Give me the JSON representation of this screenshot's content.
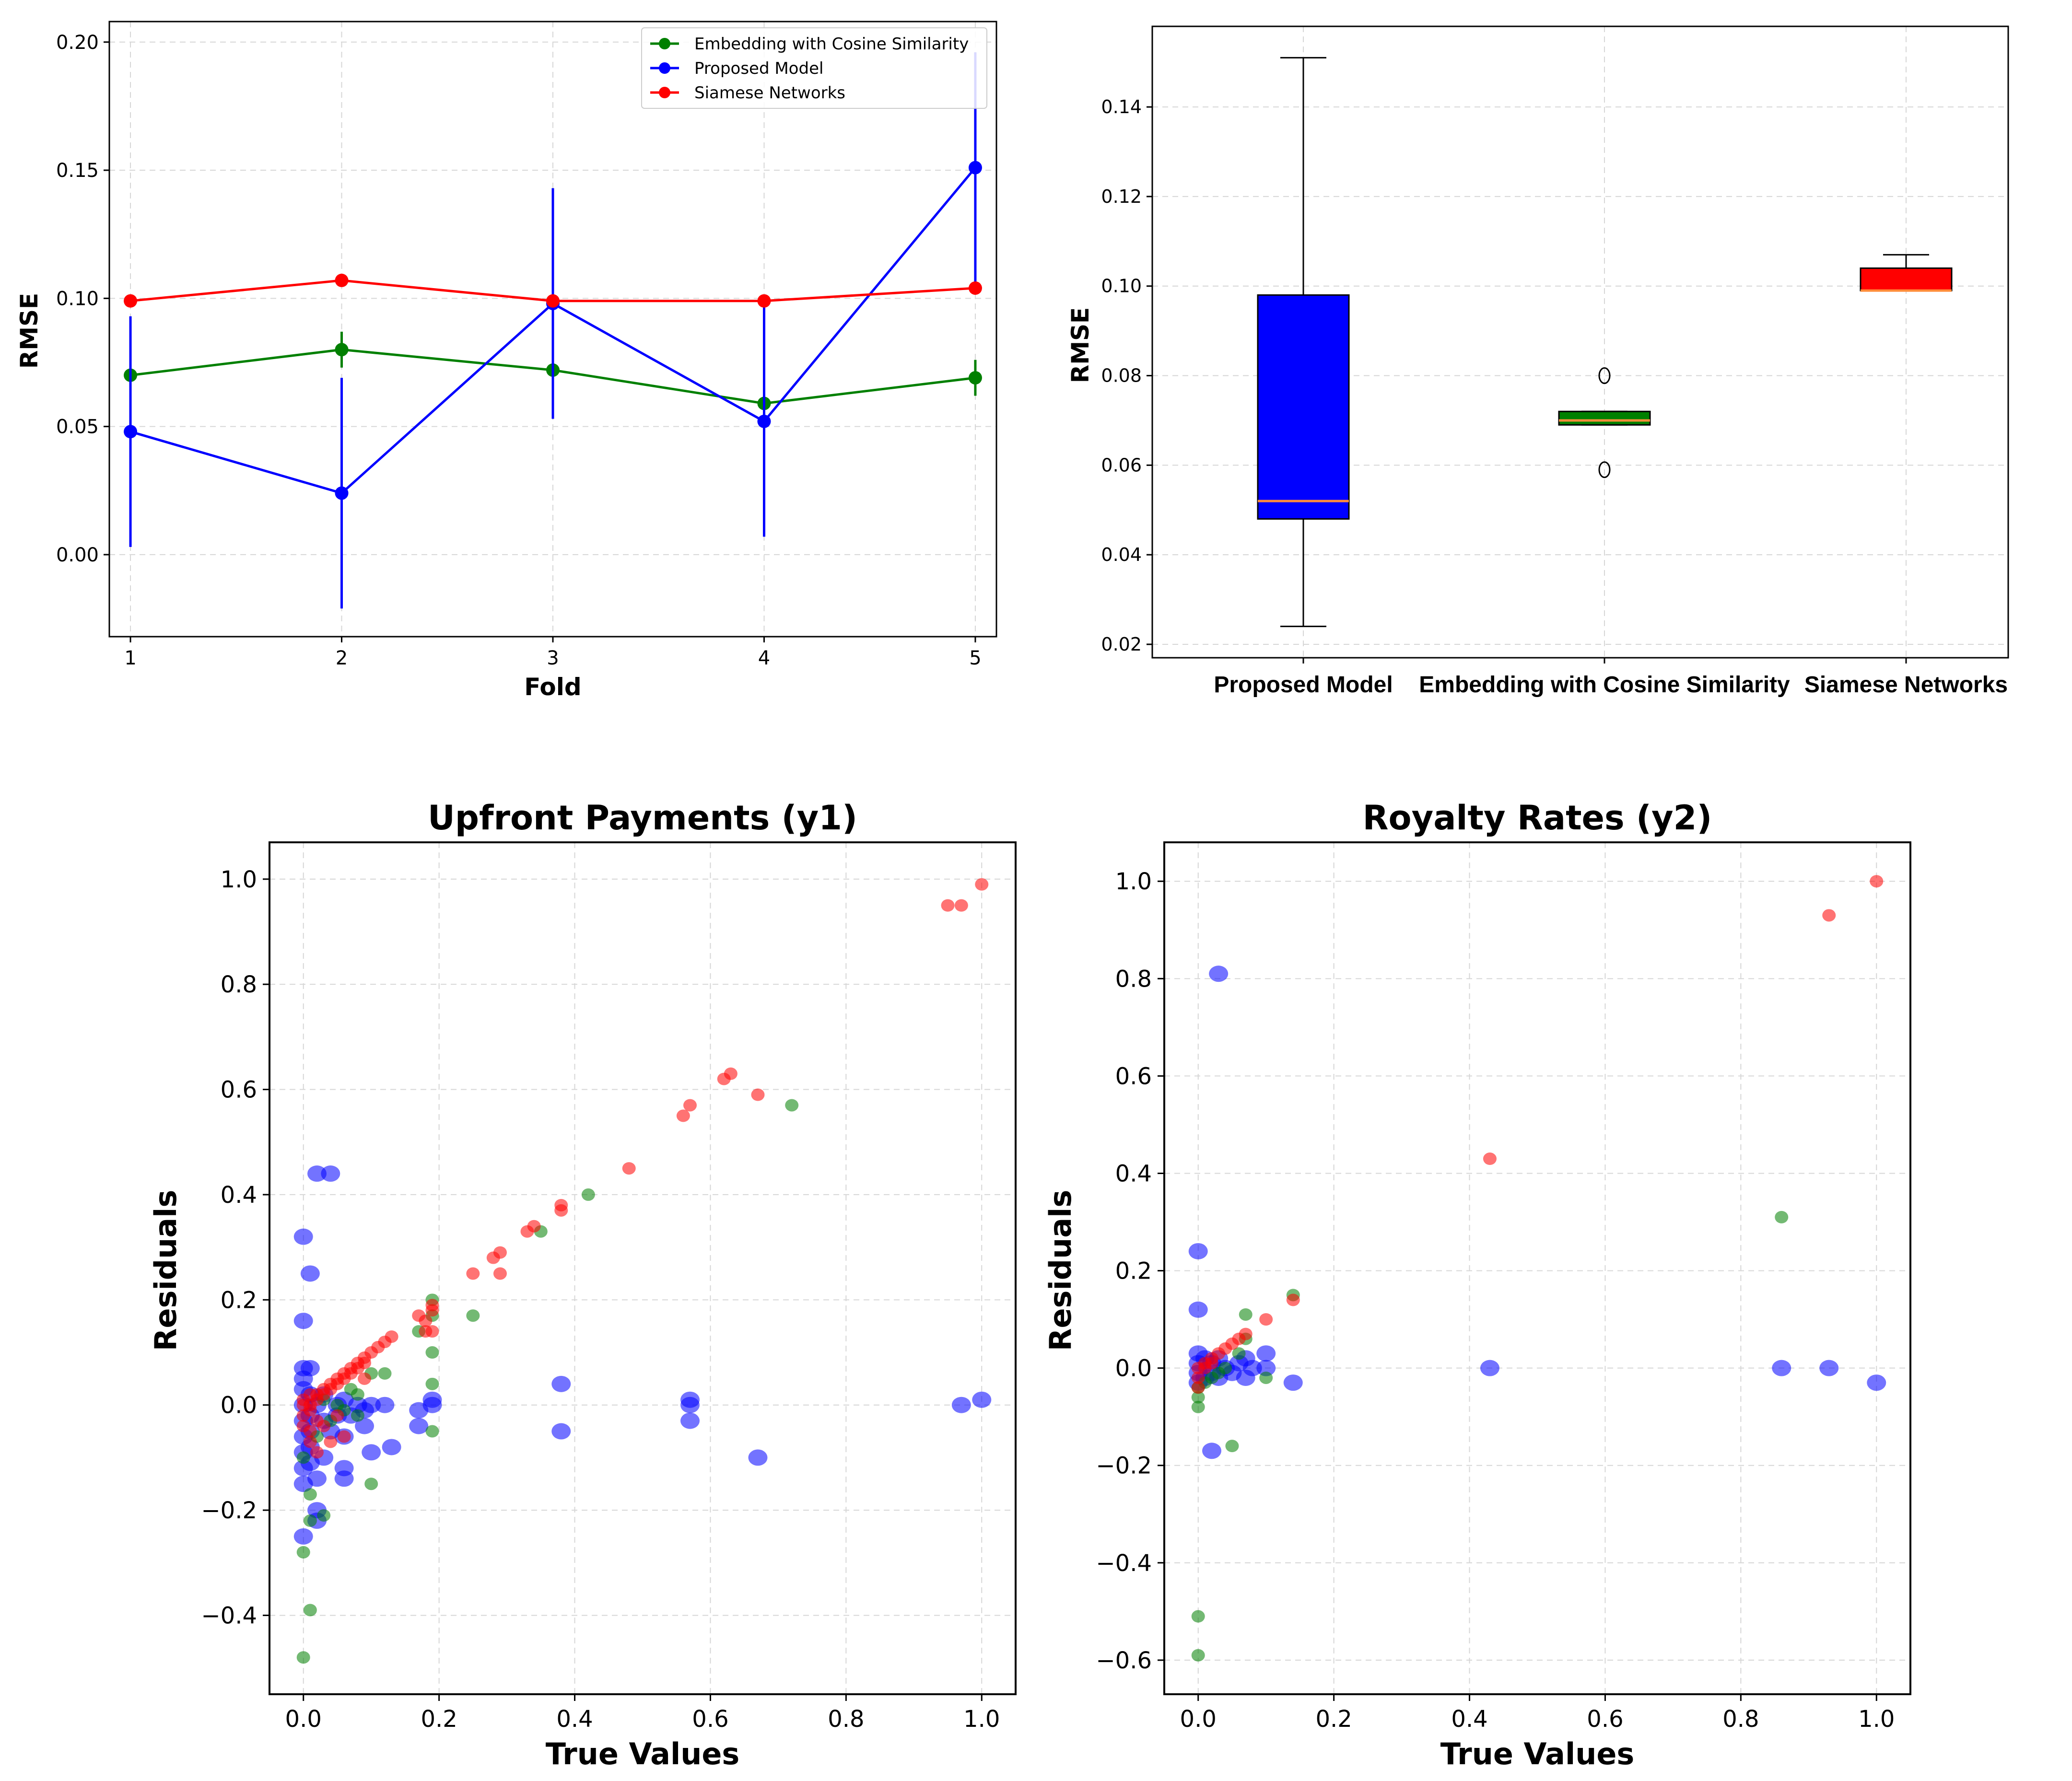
{
  "chart_data": [
    {
      "type": "line",
      "title": "",
      "xlabel": "Fold",
      "ylabel": "RMSE",
      "x": [
        1,
        2,
        3,
        4,
        5
      ],
      "xticks": [
        "1",
        "2",
        "3",
        "4",
        "5"
      ],
      "yticks": [
        "0.00",
        "0.05",
        "0.10",
        "0.15",
        "0.20"
      ],
      "xlim": [
        0.9,
        5.1
      ],
      "ylim": [
        -0.032,
        0.208
      ],
      "grid": true,
      "legend_position": "top-right",
      "series": [
        {
          "name": "Embedding with Cosine Similarity",
          "color": "#008000",
          "marker": "circle",
          "values": [
            0.07,
            0.08,
            0.072,
            0.059,
            0.069
          ],
          "error": [
            0.002,
            0.007,
            0.002,
            0.003,
            0.007
          ]
        },
        {
          "name": "Proposed Model",
          "color": "#0000ff",
          "marker": "circle",
          "values": [
            0.048,
            0.024,
            0.098,
            0.052,
            0.151
          ],
          "error": [
            0.045,
            0.045,
            0.045,
            0.045,
            0.045
          ]
        },
        {
          "name": "Siamese Networks",
          "color": "#ff0000",
          "marker": "circle",
          "values": [
            0.099,
            0.107,
            0.099,
            0.099,
            0.104
          ],
          "error": [
            0,
            0,
            0,
            0,
            0
          ]
        }
      ]
    },
    {
      "type": "box",
      "title": "",
      "xlabel": "",
      "ylabel": "RMSE",
      "categories": [
        "Proposed Model",
        "Embedding with Cosine Similarity",
        "Siamese Networks"
      ],
      "yticks": [
        "0.02",
        "0.04",
        "0.06",
        "0.08",
        "0.10",
        "0.12",
        "0.14"
      ],
      "ylim": [
        0.017,
        0.158
      ],
      "grid": true,
      "boxes": [
        {
          "min": 0.024,
          "q1": 0.048,
          "median": 0.052,
          "q3": 0.098,
          "max": 0.151,
          "fliers": [],
          "color": "#0000ff"
        },
        {
          "min": 0.069,
          "q1": 0.069,
          "median": 0.07,
          "q3": 0.072,
          "max": 0.072,
          "fliers": [
            0.059,
            0.08
          ],
          "color": "#008000"
        },
        {
          "min": 0.099,
          "q1": 0.099,
          "median": 0.099,
          "q3": 0.104,
          "max": 0.107,
          "fliers": [],
          "color": "#ff0000"
        }
      ],
      "median_color": "#ff8c3a"
    },
    {
      "type": "scatter",
      "title": "Upfront Payments (y1)",
      "xlabel": "True Values",
      "ylabel": "Residuals",
      "xticks": [
        "0.0",
        "0.2",
        "0.4",
        "0.6",
        "0.8",
        "1.0"
      ],
      "yticks": [
        "−0.4",
        "−0.2",
        "0.0",
        "0.2",
        "0.4",
        "0.6",
        "0.8",
        "1.0"
      ],
      "xlim": [
        -0.05,
        1.05
      ],
      "ylim": [
        -0.55,
        1.07
      ],
      "grid": true,
      "series": [
        {
          "color": "#0000ff",
          "size": "large",
          "points": [
            [
              0.0,
              0.07
            ],
            [
              0.0,
              0.05
            ],
            [
              0.0,
              0.03
            ],
            [
              0.0,
              0.0
            ],
            [
              0.0,
              -0.03
            ],
            [
              0.0,
              -0.06
            ],
            [
              0.0,
              -0.09
            ],
            [
              0.0,
              -0.12
            ],
            [
              0.0,
              -0.15
            ],
            [
              0.0,
              -0.25
            ],
            [
              0.0,
              0.16
            ],
            [
              0.0,
              0.32
            ],
            [
              0.01,
              0.25
            ],
            [
              0.01,
              0.07
            ],
            [
              0.01,
              0.02
            ],
            [
              0.01,
              -0.02
            ],
            [
              0.01,
              -0.05
            ],
            [
              0.01,
              -0.08
            ],
            [
              0.01,
              -0.11
            ],
            [
              0.02,
              -0.14
            ],
            [
              0.02,
              -0.22
            ],
            [
              0.02,
              0.44
            ],
            [
              0.04,
              0.44
            ],
            [
              0.02,
              0.0
            ],
            [
              0.03,
              -0.03
            ],
            [
              0.03,
              0.02
            ],
            [
              0.04,
              -0.05
            ],
            [
              0.05,
              0.0
            ],
            [
              0.05,
              -0.02
            ],
            [
              0.06,
              -0.06
            ],
            [
              0.06,
              0.01
            ],
            [
              0.07,
              -0.02
            ],
            [
              0.08,
              0.0
            ],
            [
              0.09,
              -0.04
            ],
            [
              0.09,
              -0.01
            ],
            [
              0.1,
              0.0
            ],
            [
              0.1,
              -0.09
            ],
            [
              0.06,
              -0.12
            ],
            [
              0.06,
              -0.14
            ],
            [
              0.12,
              0.0
            ],
            [
              0.13,
              -0.08
            ],
            [
              0.17,
              -0.01
            ],
            [
              0.17,
              -0.04
            ],
            [
              0.19,
              0.0
            ],
            [
              0.19,
              0.01
            ],
            [
              0.38,
              0.04
            ],
            [
              0.38,
              -0.05
            ],
            [
              0.57,
              0.0
            ],
            [
              0.57,
              -0.03
            ],
            [
              0.57,
              0.01
            ],
            [
              0.67,
              -0.1
            ],
            [
              0.97,
              0.0
            ],
            [
              1.0,
              0.01
            ],
            [
              0.02,
              -0.2
            ],
            [
              0.03,
              -0.1
            ]
          ]
        },
        {
          "color": "#008000",
          "size": "small",
          "points": [
            [
              0.0,
              -0.48
            ],
            [
              0.01,
              -0.39
            ],
            [
              0.0,
              -0.28
            ],
            [
              0.01,
              -0.22
            ],
            [
              0.03,
              -0.21
            ],
            [
              0.01,
              -0.17
            ],
            [
              0.1,
              -0.15
            ],
            [
              0.0,
              -0.1
            ],
            [
              0.02,
              -0.06
            ],
            [
              0.04,
              -0.03
            ],
            [
              0.05,
              0.0
            ],
            [
              0.08,
              0.02
            ],
            [
              0.1,
              0.06
            ],
            [
              0.12,
              0.06
            ],
            [
              0.17,
              0.14
            ],
            [
              0.19,
              0.2
            ],
            [
              0.19,
              0.17
            ],
            [
              0.19,
              0.1
            ],
            [
              0.19,
              0.04
            ],
            [
              0.19,
              -0.05
            ],
            [
              0.25,
              0.17
            ],
            [
              0.35,
              0.33
            ],
            [
              0.42,
              0.4
            ],
            [
              0.72,
              0.57
            ],
            [
              0.06,
              -0.01
            ],
            [
              0.08,
              -0.02
            ],
            [
              0.03,
              0.01
            ],
            [
              0.07,
              0.03
            ]
          ]
        },
        {
          "color": "#ff0000",
          "size": "small",
          "points": [
            [
              0.0,
              0.0
            ],
            [
              0.0,
              0.01
            ],
            [
              0.0,
              -0.02
            ],
            [
              0.0,
              -0.04
            ],
            [
              0.01,
              0.0
            ],
            [
              0.01,
              0.02
            ],
            [
              0.01,
              -0.01
            ],
            [
              0.01,
              -0.05
            ],
            [
              0.01,
              -0.07
            ],
            [
              0.02,
              0.01
            ],
            [
              0.02,
              0.02
            ],
            [
              0.02,
              -0.03
            ],
            [
              0.02,
              -0.09
            ],
            [
              0.03,
              0.03
            ],
            [
              0.03,
              0.02
            ],
            [
              0.03,
              -0.04
            ],
            [
              0.04,
              0.04
            ],
            [
              0.04,
              0.03
            ],
            [
              0.04,
              -0.07
            ],
            [
              0.05,
              0.05
            ],
            [
              0.05,
              0.04
            ],
            [
              0.05,
              -0.02
            ],
            [
              0.06,
              0.06
            ],
            [
              0.06,
              0.05
            ],
            [
              0.06,
              -0.06
            ],
            [
              0.07,
              0.07
            ],
            [
              0.07,
              0.06
            ],
            [
              0.08,
              0.07
            ],
            [
              0.08,
              0.08
            ],
            [
              0.09,
              0.09
            ],
            [
              0.09,
              0.08
            ],
            [
              0.09,
              0.05
            ],
            [
              0.1,
              0.1
            ],
            [
              0.11,
              0.11
            ],
            [
              0.12,
              0.12
            ],
            [
              0.13,
              0.13
            ],
            [
              0.17,
              0.17
            ],
            [
              0.18,
              0.16
            ],
            [
              0.18,
              0.14
            ],
            [
              0.19,
              0.18
            ],
            [
              0.19,
              0.19
            ],
            [
              0.19,
              0.14
            ],
            [
              0.25,
              0.25
            ],
            [
              0.28,
              0.28
            ],
            [
              0.29,
              0.29
            ],
            [
              0.29,
              0.25
            ],
            [
              0.33,
              0.33
            ],
            [
              0.34,
              0.34
            ],
            [
              0.38,
              0.38
            ],
            [
              0.38,
              0.37
            ],
            [
              0.48,
              0.45
            ],
            [
              0.56,
              0.55
            ],
            [
              0.57,
              0.57
            ],
            [
              0.62,
              0.62
            ],
            [
              0.63,
              0.63
            ],
            [
              0.67,
              0.59
            ],
            [
              0.95,
              0.95
            ],
            [
              0.97,
              0.95
            ],
            [
              1.0,
              0.99
            ]
          ]
        }
      ]
    },
    {
      "type": "scatter",
      "title": "Royalty Rates (y2)",
      "xlabel": "True Values",
      "ylabel": "Residuals",
      "xticks": [
        "0.0",
        "0.2",
        "0.4",
        "0.6",
        "0.8",
        "1.0"
      ],
      "yticks": [
        "−0.6",
        "−0.4",
        "−0.2",
        "0.0",
        "0.2",
        "0.4",
        "0.6",
        "0.8",
        "1.0"
      ],
      "xlim": [
        -0.05,
        1.05
      ],
      "ylim": [
        -0.67,
        1.08
      ],
      "grid": true,
      "series": [
        {
          "color": "#0000ff",
          "size": "large",
          "points": [
            [
              0.03,
              0.81
            ],
            [
              0.0,
              0.24
            ],
            [
              0.0,
              0.12
            ],
            [
              0.0,
              0.03
            ],
            [
              0.0,
              0.01
            ],
            [
              0.0,
              -0.01
            ],
            [
              0.0,
              -0.03
            ],
            [
              0.01,
              0.02
            ],
            [
              0.01,
              -0.02
            ],
            [
              0.02,
              0.01
            ],
            [
              0.02,
              -0.01
            ],
            [
              0.02,
              -0.17
            ],
            [
              0.03,
              0.02
            ],
            [
              0.03,
              -0.02
            ],
            [
              0.04,
              0.0
            ],
            [
              0.05,
              -0.01
            ],
            [
              0.06,
              0.01
            ],
            [
              0.07,
              0.02
            ],
            [
              0.07,
              -0.02
            ],
            [
              0.08,
              0.0
            ],
            [
              0.1,
              0.03
            ],
            [
              0.1,
              0.0
            ],
            [
              0.14,
              -0.03
            ],
            [
              0.43,
              0.0
            ],
            [
              0.86,
              0.0
            ],
            [
              0.93,
              0.0
            ],
            [
              1.0,
              -0.03
            ]
          ]
        },
        {
          "color": "#008000",
          "size": "small",
          "points": [
            [
              0.0,
              -0.59
            ],
            [
              0.0,
              -0.51
            ],
            [
              0.0,
              -0.08
            ],
            [
              0.0,
              -0.06
            ],
            [
              0.0,
              -0.04
            ],
            [
              0.01,
              -0.03
            ],
            [
              0.02,
              -0.02
            ],
            [
              0.03,
              -0.01
            ],
            [
              0.04,
              0.0
            ],
            [
              0.05,
              -0.16
            ],
            [
              0.06,
              0.03
            ],
            [
              0.07,
              0.11
            ],
            [
              0.07,
              0.06
            ],
            [
              0.1,
              -0.02
            ],
            [
              0.14,
              0.15
            ],
            [
              0.86,
              0.31
            ]
          ]
        },
        {
          "color": "#ff0000",
          "size": "small",
          "points": [
            [
              0.0,
              0.0
            ],
            [
              0.0,
              -0.02
            ],
            [
              0.0,
              -0.04
            ],
            [
              0.01,
              0.01
            ],
            [
              0.01,
              0.0
            ],
            [
              0.02,
              0.02
            ],
            [
              0.02,
              0.01
            ],
            [
              0.03,
              0.03
            ],
            [
              0.04,
              0.04
            ],
            [
              0.05,
              0.05
            ],
            [
              0.06,
              0.06
            ],
            [
              0.07,
              0.07
            ],
            [
              0.1,
              0.1
            ],
            [
              0.14,
              0.14
            ],
            [
              0.43,
              0.43
            ],
            [
              0.93,
              0.93
            ],
            [
              1.0,
              1.0
            ]
          ]
        }
      ]
    }
  ]
}
